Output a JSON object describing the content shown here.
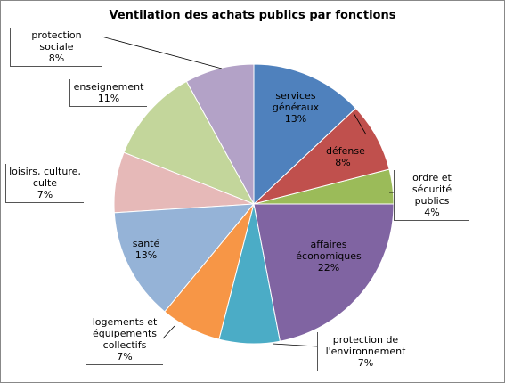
{
  "chart_data": {
    "type": "pie",
    "title": "Ventilation des achats publics par fonctions",
    "categories": [
      "services généraux",
      "défense",
      "ordre et sécurité publics",
      "affaires économiques",
      "protection de l'environnement",
      "logements et équipements collectifs",
      "santé",
      "loisirs, culture, culte",
      "enseignement",
      "protection sociale"
    ],
    "values": [
      13,
      8,
      4,
      22,
      7,
      7,
      13,
      7,
      11,
      8
    ],
    "value_labels": [
      "13%",
      "8%",
      "4%",
      "22%",
      "7%",
      "7%",
      "13%",
      "7%",
      "11%",
      "8%"
    ],
    "colors": [
      "#4f81bd",
      "#c0504d",
      "#9bbb59",
      "#8064a2",
      "#4bacc6",
      "#f79646",
      "#95b3d7",
      "#e6b9b8",
      "#c3d69b",
      "#b3a2c7"
    ]
  }
}
